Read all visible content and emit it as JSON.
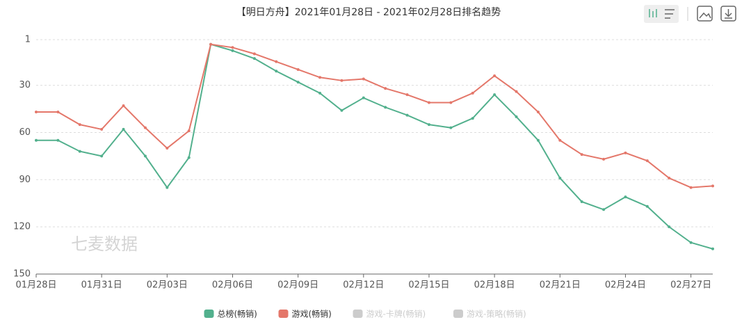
{
  "chart_data": {
    "type": "line",
    "title": "【明日方舟】2021年01月28日 - 2021年02月28日排名趋势",
    "watermark": "七麦数据",
    "categories": [
      "01月28日",
      null,
      null,
      "01月31日",
      null,
      null,
      "02月03日",
      null,
      null,
      "02月06日",
      null,
      null,
      "02月09日",
      null,
      null,
      "02月12日",
      null,
      null,
      "02月15日",
      null,
      null,
      "02月18日",
      null,
      null,
      "02月21日",
      null,
      null,
      "02月24日",
      null,
      null,
      "02月27日",
      null
    ],
    "series": [
      {
        "name": "总榜(畅销)",
        "color": "#52b08d",
        "values": [
          65,
          65,
          72,
          75,
          58,
          75,
          95,
          76,
          4,
          8,
          13,
          21,
          28,
          35,
          46,
          38,
          44,
          49,
          55,
          57,
          51,
          36,
          50,
          65,
          89,
          104,
          109,
          101,
          107,
          120,
          130,
          134
        ]
      },
      {
        "name": "游戏(畅销)",
        "color": "#e4776a",
        "values": [
          47,
          47,
          55,
          58,
          43,
          57,
          70,
          59,
          4,
          6,
          10,
          15,
          20,
          25,
          27,
          26,
          32,
          36,
          41,
          41,
          35,
          24,
          34,
          47,
          65,
          74,
          77,
          73,
          78,
          89,
          95,
          94
        ]
      }
    ],
    "inactive_legend": [
      {
        "name": "游戏-卡牌(畅销)",
        "color": "#cccccc"
      },
      {
        "name": "游戏-策略(畅销)",
        "color": "#cccccc"
      }
    ],
    "ylim": [
      1,
      150
    ],
    "inverse": true,
    "yticks": [
      1,
      30,
      60,
      90,
      120,
      150
    ],
    "grid": true
  }
}
